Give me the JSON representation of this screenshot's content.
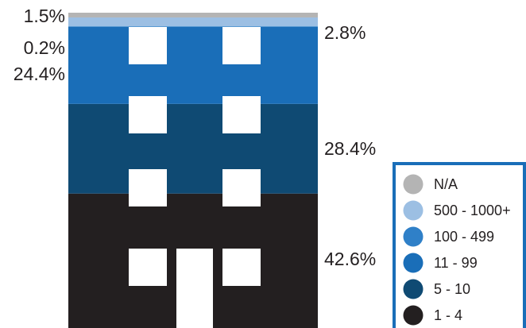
{
  "chart_data": {
    "type": "stacked-bar",
    "title": "",
    "categories": [
      "1 - 4",
      "5 - 10",
      "11 - 99",
      "100 - 499",
      "500 - 1000+",
      "N/A"
    ],
    "values": [
      42.6,
      28.4,
      24.4,
      0.2,
      2.8,
      1.5
    ],
    "value_labels": [
      "42.6%",
      "28.4%",
      "24.4%",
      "0.2%",
      "2.8%",
      "1.5%"
    ],
    "colors": [
      "#231f20",
      "#0f4a73",
      "#1a6eb8",
      "#2f80c8",
      "#9cbfe3",
      "#b4b4b4"
    ],
    "legend": {
      "placement": "bottom-right",
      "items": [
        "N/A",
        "500 - 1000+",
        "100 - 499",
        "11 - 99",
        "5 - 10",
        "1 - 4"
      ],
      "colors": [
        "#b4b4b4",
        "#9cbfe3",
        "#2f80c8",
        "#1a6eb8",
        "#0f4a73",
        "#231f20"
      ],
      "border_color": "#1a6eb8"
    }
  }
}
